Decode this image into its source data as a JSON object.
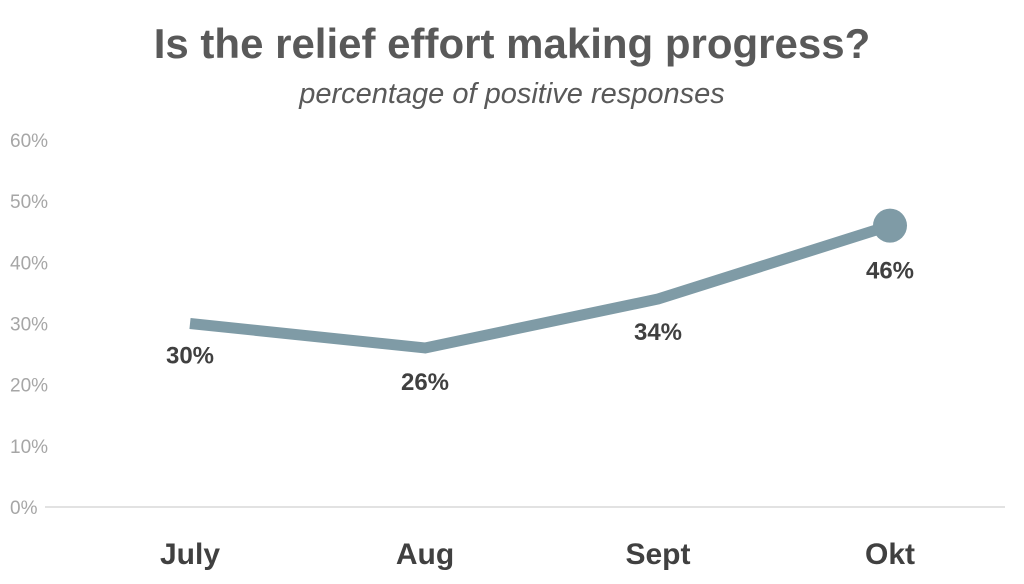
{
  "chart_data": {
    "type": "line",
    "title": "Is the relief effort making progress?",
    "subtitle": "percentage of positive responses",
    "categories": [
      "July",
      "Aug",
      "Sept",
      "Okt"
    ],
    "series": [
      {
        "values": [
          30,
          26,
          34,
          46
        ]
      }
    ],
    "data_labels": [
      "30%",
      "26%",
      "34%",
      "46%"
    ],
    "y_ticks": [
      "0%",
      "10%",
      "20%",
      "30%",
      "40%",
      "50%",
      "60%"
    ],
    "ylim": [
      0,
      60
    ],
    "grid": false,
    "legend": "none",
    "colors": {
      "line": "#7f9ba6",
      "axis": "#d9d9d9",
      "text": "#404040",
      "title": "#595959",
      "tick": "#a6a6a6"
    }
  }
}
